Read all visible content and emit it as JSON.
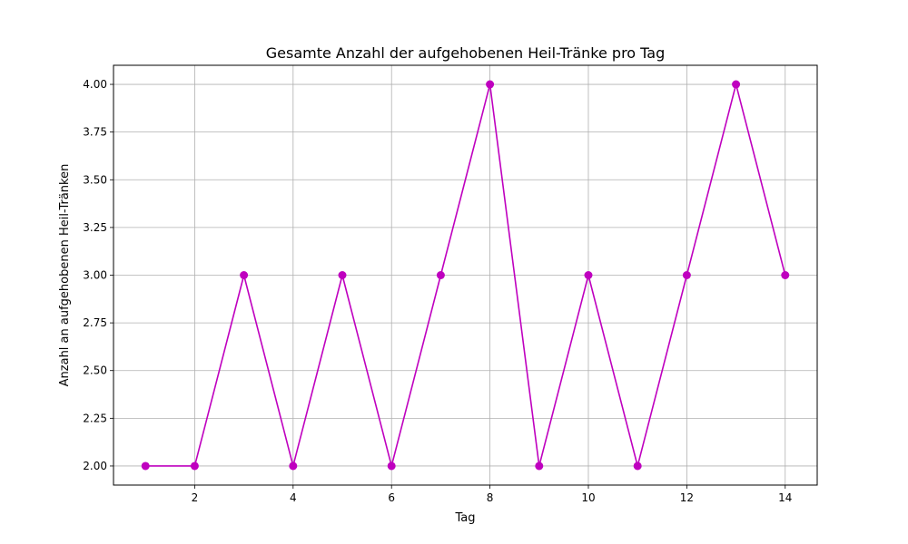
{
  "chart_data": {
    "type": "line",
    "title": "Gesamte Anzahl der aufgehobenen Heil-Tränke pro Tag",
    "xlabel": "Tag",
    "ylabel": "Anzahl an aufgehobenen Heil-Tränken",
    "x": [
      1,
      2,
      3,
      4,
      5,
      6,
      7,
      8,
      9,
      10,
      11,
      12,
      13,
      14
    ],
    "series": [
      {
        "values": [
          2,
          2,
          3,
          2,
          3,
          2,
          3,
          4,
          2,
          3,
          2,
          3,
          4,
          3
        ],
        "color": "#bf00bf",
        "marker": "circle"
      }
    ],
    "xlim": [
      0.35,
      14.65
    ],
    "ylim": [
      1.9,
      4.1
    ],
    "xticks": [
      2,
      4,
      6,
      8,
      10,
      12,
      14
    ],
    "xtick_labels": [
      "2",
      "4",
      "6",
      "8",
      "10",
      "12",
      "14"
    ],
    "yticks": [
      2.0,
      2.25,
      2.5,
      2.75,
      3.0,
      3.25,
      3.5,
      3.75,
      4.0
    ],
    "ytick_labels": [
      "2.00",
      "2.25",
      "2.50",
      "2.75",
      "3.00",
      "3.25",
      "3.50",
      "3.75",
      "4.00"
    ],
    "grid": true,
    "grid_color": "#b0b0b0"
  }
}
